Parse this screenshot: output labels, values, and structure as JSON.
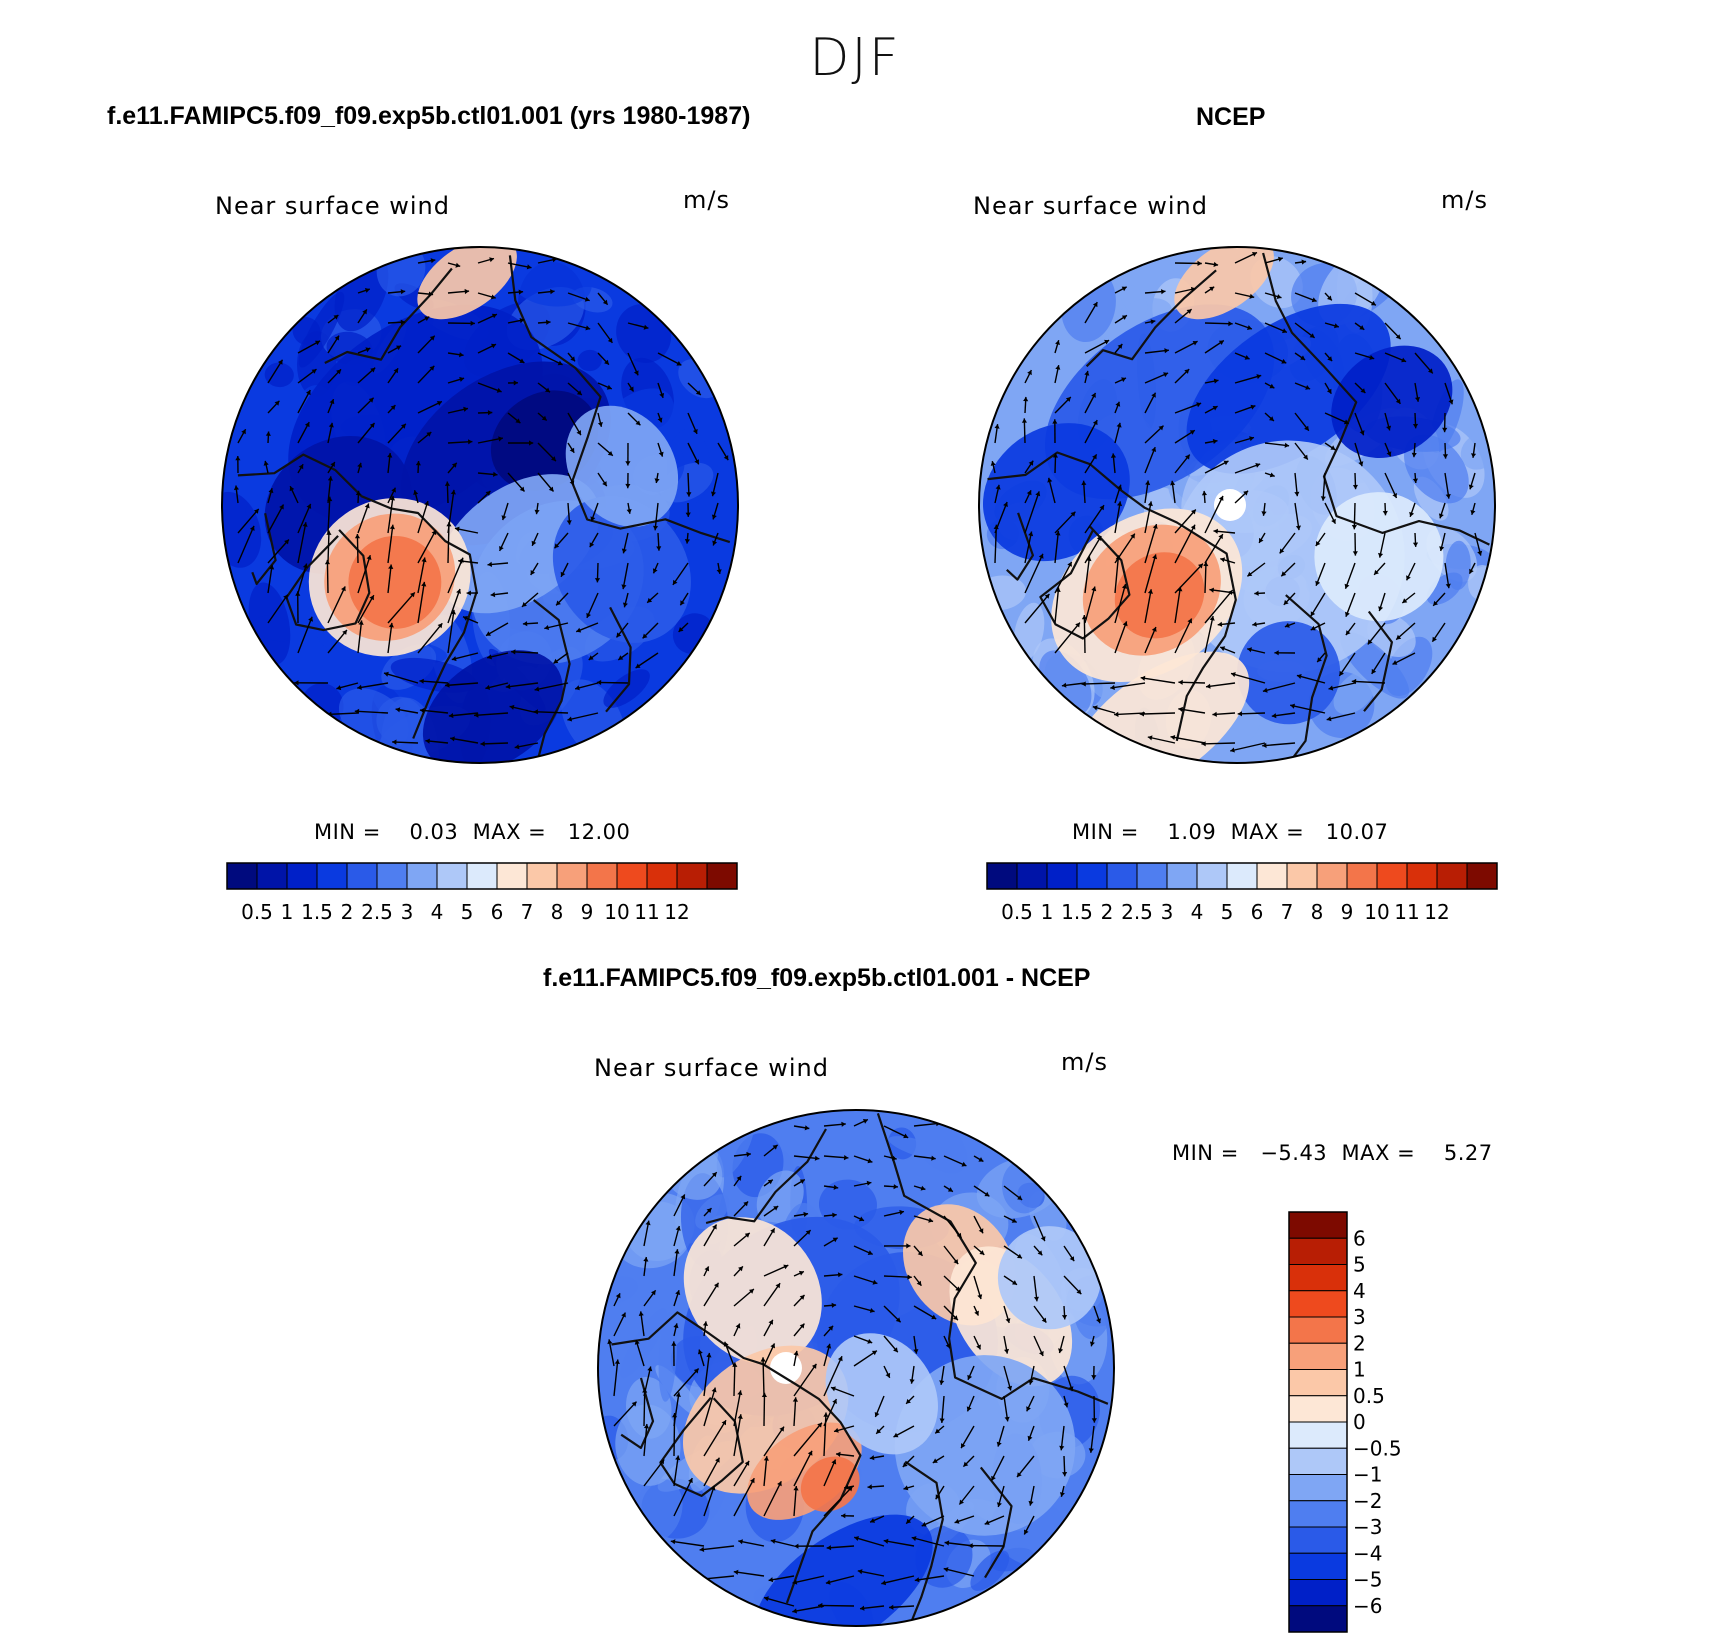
{
  "figure": {
    "title": "DJF",
    "panels": [
      {
        "id": "model",
        "title": "f.e11.FAMIPC5.f09_f09.exp5b.ctl01.001 (yrs 1980-1987)",
        "subtitle": "Near surface wind",
        "units": "m/s",
        "stats": "MIN =    0.03  MAX =   12.00"
      },
      {
        "id": "obs",
        "title": "NCEP",
        "subtitle": "Near surface wind",
        "units": "m/s",
        "stats": "MIN =    1.09  MAX =   10.07"
      },
      {
        "id": "diff",
        "title": "f.e11.FAMIPC5.f09_f09.exp5b.ctl01.001 - NCEP",
        "subtitle": "Near surface wind",
        "units": "m/s",
        "stats": "MIN =   −5.43  MAX =    5.27"
      }
    ]
  },
  "chart_data": [
    {
      "type": "heatmap",
      "projection": "north-polar-stereographic",
      "title": "f.e11.FAMIPC5.f09_f09.exp5b.ctl01.001 (yrs 1980-1987)",
      "variable": "Near surface wind",
      "units": "m/s",
      "min": 0.03,
      "max": 12.0,
      "levels": [
        "0.5",
        "1",
        "1.5",
        "2",
        "2.5",
        "3",
        "4",
        "5",
        "6",
        "7",
        "8",
        "9",
        "10",
        "11",
        "12"
      ],
      "colors": [
        "#000a7e",
        "#0014a8",
        "#0020c8",
        "#0a3ae0",
        "#2a5ae8",
        "#4f7ef0",
        "#7fa6f4",
        "#aec8f8",
        "#dceafc",
        "#fde7d6",
        "#fbc8a8",
        "#f7a07a",
        "#f3754a",
        "#ee4a1e",
        "#d9300a",
        "#b81e04",
        "#7d0a00"
      ],
      "features": [
        "high speeds over North Atlantic",
        "low speeds over Arctic interior"
      ]
    },
    {
      "type": "heatmap",
      "projection": "north-polar-stereographic",
      "title": "NCEP",
      "variable": "Near surface wind",
      "units": "m/s",
      "min": 1.09,
      "max": 10.07,
      "levels": [
        "0.5",
        "1",
        "1.5",
        "2",
        "2.5",
        "3",
        "4",
        "5",
        "6",
        "7",
        "8",
        "9",
        "10",
        "11",
        "12"
      ],
      "colors": [
        "#000a7e",
        "#0014a8",
        "#0020c8",
        "#0a3ae0",
        "#2a5ae8",
        "#4f7ef0",
        "#7fa6f4",
        "#aec8f8",
        "#dceafc",
        "#fde7d6",
        "#fbc8a8",
        "#f7a07a",
        "#f3754a",
        "#ee4a1e",
        "#d9300a",
        "#b81e04",
        "#7d0a00"
      ],
      "features": [
        "high speeds over North Atlantic",
        "pole hole at center"
      ]
    },
    {
      "type": "heatmap",
      "projection": "north-polar-stereographic",
      "title": "f.e11.FAMIPC5.f09_f09.exp5b.ctl01.001 - NCEP",
      "variable": "Near surface wind",
      "units": "m/s",
      "min": -5.43,
      "max": 5.27,
      "levels": [
        "6",
        "5",
        "4",
        "3",
        "2",
        "1",
        "0.5",
        "0",
        "−0.5",
        "−1",
        "−2",
        "−3",
        "−4",
        "−5",
        "−6"
      ],
      "colors": [
        "#7d0a00",
        "#b81e04",
        "#d9300a",
        "#ee4a1e",
        "#f3754a",
        "#f7a07a",
        "#fbc8a8",
        "#fde7d6",
        "#dceafc",
        "#aec8f8",
        "#7fa6f4",
        "#4f7ef0",
        "#2a5ae8",
        "#0a3ae0",
        "#0020c8",
        "#000a7e"
      ],
      "features": [
        "positive bias over North Atlantic",
        "negative bias over Arctic"
      ]
    }
  ]
}
